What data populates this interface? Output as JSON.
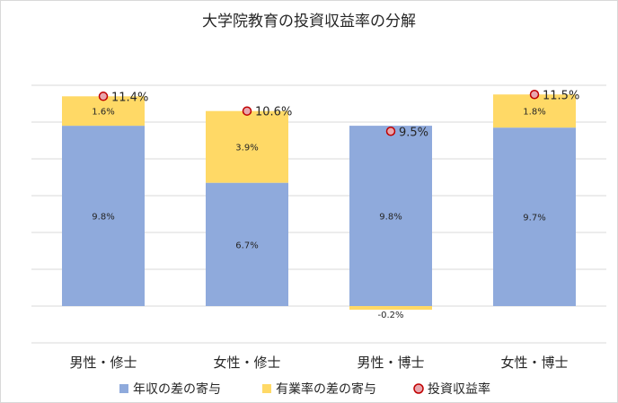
{
  "chart_data": {
    "type": "bar",
    "stacked": true,
    "title": "大学院教育の投資収益率の分解",
    "categories": [
      "男性・修士",
      "女性・修士",
      "男性・博士",
      "女性・博士"
    ],
    "series": [
      {
        "name": "年収の差の寄与",
        "color": "#8faadc",
        "values": [
          9.8,
          6.7,
          9.8,
          9.7
        ],
        "labels": [
          "9.8%",
          "6.7%",
          "9.8%",
          "9.7%"
        ]
      },
      {
        "name": "有業率の差の寄与",
        "color": "#ffd966",
        "values": [
          1.6,
          3.9,
          -0.2,
          1.8
        ],
        "labels": [
          "1.6%",
          "3.9%",
          "-0.2%",
          "1.8%"
        ]
      }
    ],
    "markers": {
      "name": "投資収益率",
      "fill": "#e8a6ae",
      "stroke": "#c00000",
      "values": [
        11.4,
        10.6,
        9.5,
        11.5
      ],
      "labels": [
        "11.4%",
        "10.6%",
        "9.5%",
        "11.5%"
      ]
    },
    "ylim": [
      -1.0,
      12.0
    ],
    "grid": true,
    "legend_position": "bottom"
  }
}
